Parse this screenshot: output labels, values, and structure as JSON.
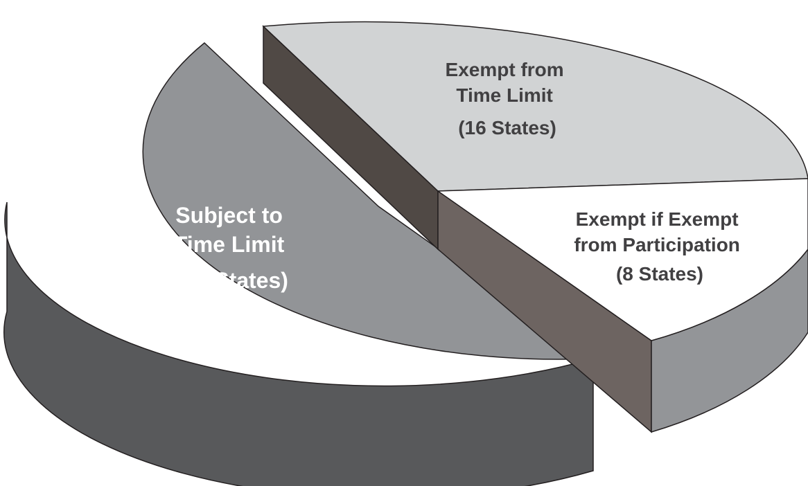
{
  "chart_data": {
    "type": "pie",
    "title": "",
    "slices": [
      {
        "name_lines": [
          "Subject to",
          "Time Limit",
          "(26 States)"
        ],
        "value": 26,
        "color": "#929497",
        "side_color": "#58595b",
        "label_color": "#ffffff"
      },
      {
        "name_lines": [
          "Exempt from",
          "Time Limit",
          "(16 States)"
        ],
        "value": 16,
        "color": "#d1d3d4",
        "side_color": "#a7a9ac",
        "label_color": "#414042"
      },
      {
        "name_lines": [
          "Exempt if Exempt",
          "from Participation",
          "(8 States)"
        ],
        "value": 8,
        "color": "#ffffff",
        "side_color": "#939598",
        "label_color": "#414042"
      }
    ],
    "cut_face_colors": [
      "#504945",
      "#6d6461"
    ]
  }
}
